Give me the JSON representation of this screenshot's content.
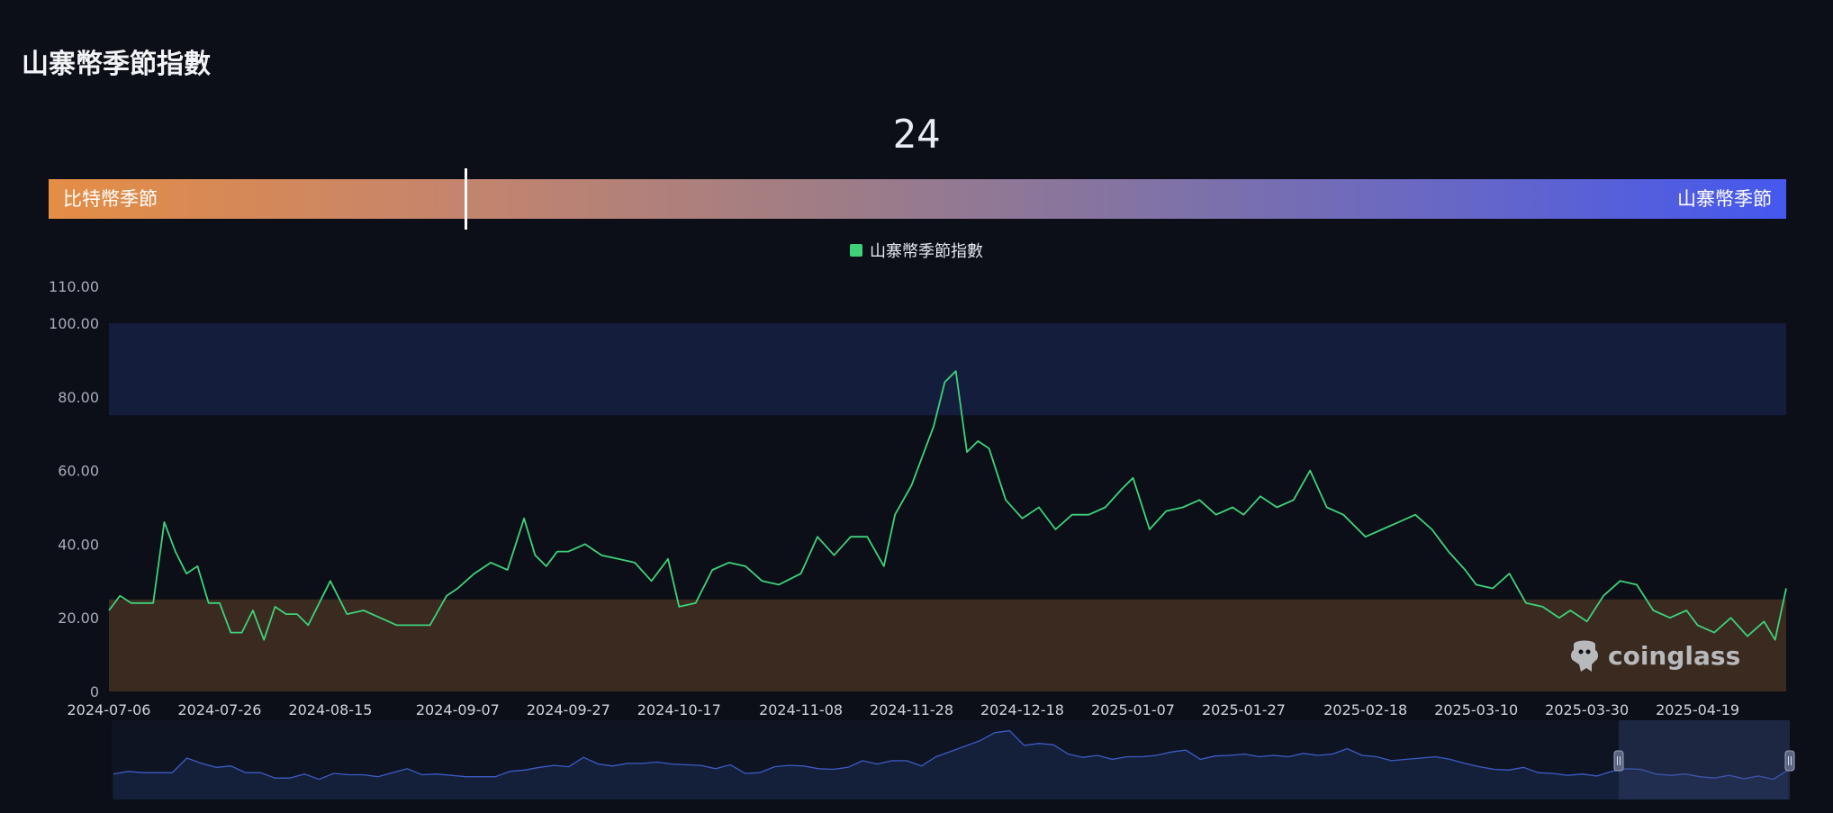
{
  "page": {
    "title": "山寨幣季節指數"
  },
  "gauge": {
    "value": "24",
    "value_num": 24,
    "left_label": "比特幣季節",
    "right_label": "山寨幣季節"
  },
  "legend": {
    "label": "山寨幣季節指數"
  },
  "watermark": {
    "text": "coinglass",
    "icon": "coinglass-logo-icon"
  },
  "colors": {
    "line": "#3fd17a",
    "upper_band": "#141d3c",
    "lower_band": "#3a2a1f",
    "slider_line": "#3c5bc6",
    "slider_fill": "#14203a",
    "gauge_left": "#e48d45",
    "gauge_right": "#4558ef"
  },
  "chart_data": {
    "type": "line",
    "title": "山寨幣季節指數",
    "ylim": [
      0,
      110
    ],
    "y_ticks": [
      "0",
      "20.00",
      "40.00",
      "60.00",
      "80.00",
      "100.00",
      "110.00"
    ],
    "y_tick_values": [
      0,
      20,
      40,
      60,
      80,
      100,
      110
    ],
    "x_tick_labels": [
      "2024-07-06",
      "2024-07-26",
      "2024-08-15",
      "2024-09-07",
      "2024-09-27",
      "2024-10-17",
      "2024-11-08",
      "2024-11-28",
      "2024-12-18",
      "2025-01-07",
      "2025-01-27",
      "2025-02-18",
      "2025-03-10",
      "2025-03-30",
      "2025-04-19"
    ],
    "bands": [
      {
        "from": 75,
        "to": 100,
        "color": "#141d3c"
      },
      {
        "from": 0,
        "to": 25,
        "color": "#3a2a1f"
      }
    ],
    "series": [
      {
        "name": "山寨幣季節指數",
        "color": "#3fd17a",
        "x": [
          "2024-07-06",
          "2024-07-08",
          "2024-07-10",
          "2024-07-12",
          "2024-07-14",
          "2024-07-16",
          "2024-07-18",
          "2024-07-20",
          "2024-07-22",
          "2024-07-24",
          "2024-07-26",
          "2024-07-28",
          "2024-07-30",
          "2024-08-01",
          "2024-08-03",
          "2024-08-05",
          "2024-08-07",
          "2024-08-09",
          "2024-08-11",
          "2024-08-13",
          "2024-08-15",
          "2024-08-18",
          "2024-08-21",
          "2024-08-24",
          "2024-08-27",
          "2024-08-30",
          "2024-09-02",
          "2024-09-05",
          "2024-09-07",
          "2024-09-10",
          "2024-09-13",
          "2024-09-16",
          "2024-09-19",
          "2024-09-21",
          "2024-09-23",
          "2024-09-25",
          "2024-09-27",
          "2024-09-30",
          "2024-10-03",
          "2024-10-06",
          "2024-10-09",
          "2024-10-12",
          "2024-10-15",
          "2024-10-17",
          "2024-10-20",
          "2024-10-23",
          "2024-10-26",
          "2024-10-29",
          "2024-11-01",
          "2024-11-04",
          "2024-11-08",
          "2024-11-11",
          "2024-11-14",
          "2024-11-17",
          "2024-11-20",
          "2024-11-23",
          "2024-11-25",
          "2024-11-28",
          "2024-11-30",
          "2024-12-02",
          "2024-12-04",
          "2024-12-06",
          "2024-12-08",
          "2024-12-10",
          "2024-12-12",
          "2024-12-15",
          "2024-12-18",
          "2024-12-21",
          "2024-12-24",
          "2024-12-27",
          "2024-12-30",
          "2025-01-02",
          "2025-01-05",
          "2025-01-07",
          "2025-01-10",
          "2025-01-13",
          "2025-01-16",
          "2025-01-19",
          "2025-01-22",
          "2025-01-25",
          "2025-01-27",
          "2025-01-30",
          "2025-02-02",
          "2025-02-05",
          "2025-02-08",
          "2025-02-11",
          "2025-02-14",
          "2025-02-18",
          "2025-02-21",
          "2025-02-24",
          "2025-02-27",
          "2025-03-02",
          "2025-03-05",
          "2025-03-08",
          "2025-03-10",
          "2025-03-13",
          "2025-03-16",
          "2025-03-19",
          "2025-03-22",
          "2025-03-25",
          "2025-03-27",
          "2025-03-30",
          "2025-04-02",
          "2025-04-05",
          "2025-04-08",
          "2025-04-11",
          "2025-04-14",
          "2025-04-17",
          "2025-04-19",
          "2025-04-22",
          "2025-04-25",
          "2025-04-28",
          "2025-05-01",
          "2025-05-03",
          "2025-05-05"
        ],
        "values": [
          22,
          26,
          24,
          24,
          24,
          46,
          38,
          32,
          34,
          24,
          24,
          16,
          16,
          22,
          14,
          23,
          21,
          21,
          18,
          24,
          30,
          21,
          22,
          20,
          18,
          18,
          18,
          26,
          28,
          32,
          35,
          33,
          47,
          37,
          34,
          38,
          38,
          40,
          37,
          36,
          35,
          30,
          36,
          23,
          24,
          33,
          35,
          34,
          30,
          29,
          32,
          42,
          37,
          42,
          42,
          34,
          48,
          56,
          64,
          72,
          84,
          87,
          65,
          68,
          66,
          52,
          47,
          50,
          44,
          48,
          48,
          50,
          55,
          58,
          44,
          49,
          50,
          52,
          48,
          50,
          48,
          53,
          50,
          52,
          60,
          50,
          48,
          42,
          44,
          46,
          48,
          44,
          38,
          33,
          29,
          28,
          32,
          24,
          23,
          20,
          22,
          19,
          26,
          30,
          29,
          22,
          20,
          22,
          18,
          16,
          20,
          15,
          19,
          14,
          28
        ]
      }
    ]
  }
}
